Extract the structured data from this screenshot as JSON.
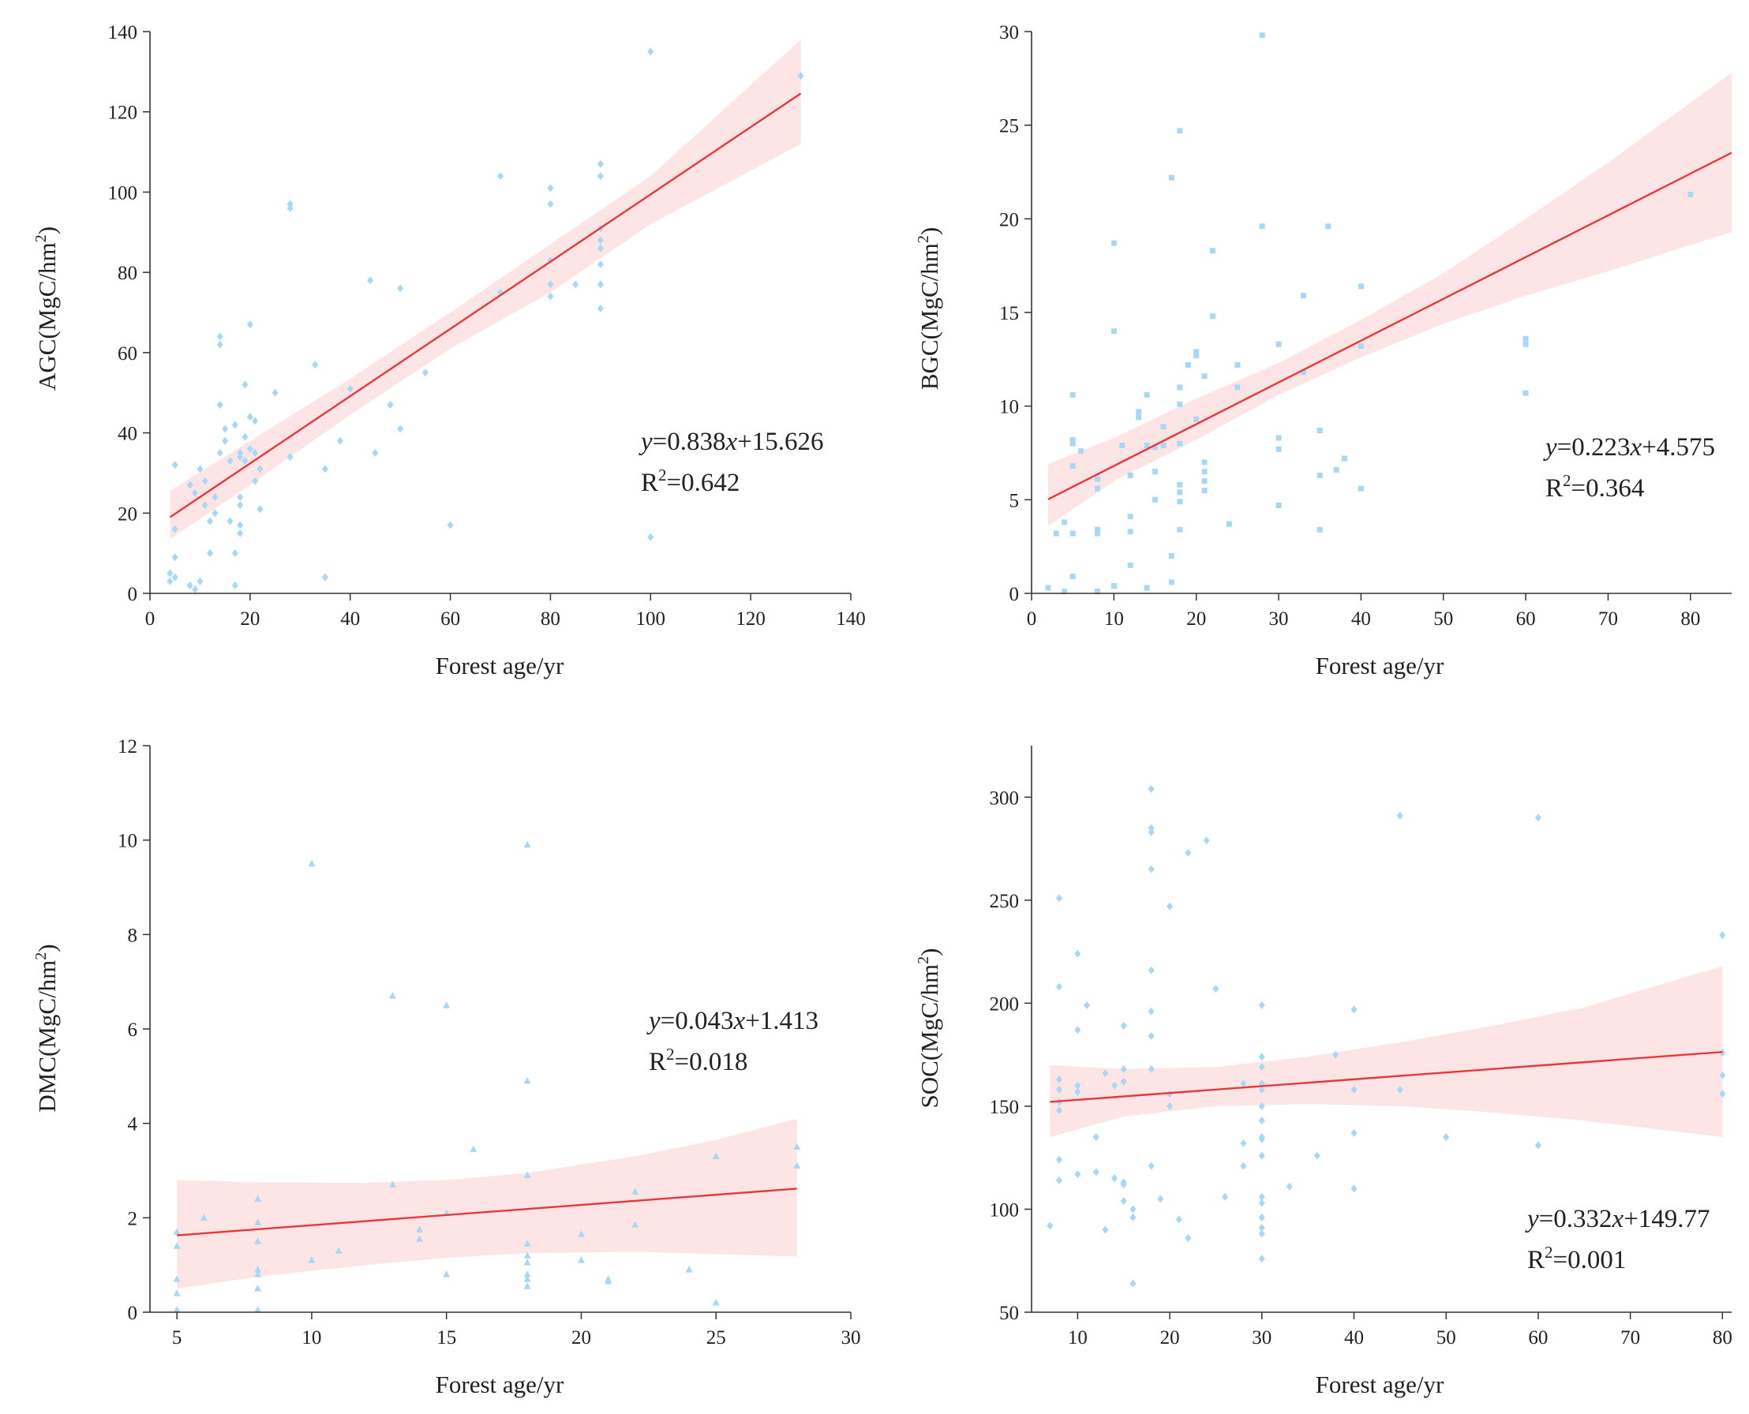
{
  "colors": {
    "point": "#a8d8f5",
    "band": "#fde2e2",
    "line": "#e8383c",
    "axis": "#333333"
  },
  "chart_data": [
    {
      "type": "scatter",
      "marker": "diamond",
      "xlabel": "Forest age/yr",
      "ylabel_main": "AGC(MgC/hm",
      "ylabel_sup": "2",
      "ylabel_close": ")",
      "xlim": [
        0,
        140
      ],
      "ylim": [
        0,
        140
      ],
      "xticks": [
        0,
        20,
        40,
        60,
        80,
        100,
        120,
        140
      ],
      "yticks": [
        0,
        20,
        40,
        60,
        80,
        100,
        120,
        140
      ],
      "fit": {
        "slope": 0.838,
        "intercept": 15.626,
        "x_range": [
          4,
          130
        ]
      },
      "band": {
        "x": [
          4,
          20,
          40,
          60,
          80,
          100,
          130
        ],
        "lower": [
          13.5,
          27,
          44.5,
          61,
          75,
          92,
          112
        ],
        "upper": [
          25.5,
          38,
          53.5,
          70,
          87,
          104,
          138
        ]
      },
      "equation": {
        "y": "y",
        "eq1": "=0.838",
        "x": "x",
        "eq2": "+15.626"
      },
      "r2": {
        "R": "R",
        "sup": "2",
        "val": "=0.642"
      },
      "points": [
        [
          4,
          3
        ],
        [
          4,
          5
        ],
        [
          5,
          4
        ],
        [
          5,
          9
        ],
        [
          5,
          16
        ],
        [
          5,
          32
        ],
        [
          8,
          2
        ],
        [
          8,
          27
        ],
        [
          9,
          1
        ],
        [
          9,
          25
        ],
        [
          10,
          3
        ],
        [
          10,
          31
        ],
        [
          11,
          22
        ],
        [
          11,
          28
        ],
        [
          12,
          10
        ],
        [
          12,
          18
        ],
        [
          13,
          20
        ],
        [
          13,
          24
        ],
        [
          14,
          35
        ],
        [
          14,
          47
        ],
        [
          14,
          62
        ],
        [
          14,
          64
        ],
        [
          15,
          38
        ],
        [
          15,
          41
        ],
        [
          16,
          18
        ],
        [
          16,
          33
        ],
        [
          17,
          10
        ],
        [
          17,
          42
        ],
        [
          17,
          2
        ],
        [
          18,
          15
        ],
        [
          18,
          17
        ],
        [
          18,
          22
        ],
        [
          18,
          24
        ],
        [
          18,
          34
        ],
        [
          18,
          35
        ],
        [
          19,
          33
        ],
        [
          19,
          39
        ],
        [
          19,
          52
        ],
        [
          20,
          36
        ],
        [
          20,
          44
        ],
        [
          20,
          67
        ],
        [
          21,
          28
        ],
        [
          21,
          35
        ],
        [
          21,
          43
        ],
        [
          22,
          21
        ],
        [
          22,
          31
        ],
        [
          25,
          50
        ],
        [
          28,
          34
        ],
        [
          28,
          96
        ],
        [
          28,
          97
        ],
        [
          33,
          57
        ],
        [
          35,
          4
        ],
        [
          35,
          31
        ],
        [
          38,
          38
        ],
        [
          40,
          51
        ],
        [
          44,
          78
        ],
        [
          45,
          35
        ],
        [
          48,
          47
        ],
        [
          50,
          41
        ],
        [
          50,
          76
        ],
        [
          55,
          55
        ],
        [
          60,
          17
        ],
        [
          70,
          75
        ],
        [
          70,
          104
        ],
        [
          80,
          74
        ],
        [
          80,
          77
        ],
        [
          80,
          83
        ],
        [
          80,
          97
        ],
        [
          80,
          101
        ],
        [
          85,
          77
        ],
        [
          90,
          71
        ],
        [
          90,
          77
        ],
        [
          90,
          82
        ],
        [
          90,
          86
        ],
        [
          90,
          88
        ],
        [
          90,
          91
        ],
        [
          90,
          104
        ],
        [
          90,
          107
        ],
        [
          100,
          14
        ],
        [
          100,
          135
        ],
        [
          130,
          129
        ]
      ]
    },
    {
      "type": "scatter",
      "marker": "square",
      "xlabel": "Forest age/yr",
      "ylabel_main": "BGC(MgC/hm",
      "ylabel_sup": "2",
      "ylabel_close": ")",
      "xlim": [
        0,
        85
      ],
      "ylim": [
        0,
        30
      ],
      "xticks": [
        0,
        10,
        20,
        30,
        40,
        50,
        60,
        70,
        80
      ],
      "yticks": [
        0,
        5,
        10,
        15,
        20,
        25,
        30
      ],
      "fit": {
        "slope": 0.223,
        "intercept": 4.575,
        "x_range": [
          2,
          85
        ]
      },
      "band": {
        "x": [
          2,
          10,
          20,
          30,
          40,
          50,
          60,
          70,
          85
        ],
        "lower": [
          3.6,
          6.0,
          8.2,
          10.6,
          12.6,
          14.4,
          15.9,
          17.2,
          19.3
        ],
        "upper": [
          6.9,
          8.3,
          10.4,
          12.3,
          14.6,
          17.1,
          20.0,
          23.0,
          27.8
        ]
      },
      "equation": {
        "y": "y",
        "eq1": "=0.223",
        "x": "x",
        "eq2": "+4.575"
      },
      "r2": {
        "R": "R",
        "sup": "2",
        "val": "=0.364"
      },
      "points": [
        [
          2,
          0.3
        ],
        [
          3,
          3.2
        ],
        [
          4,
          3.8
        ],
        [
          4,
          0.1
        ],
        [
          5,
          3.2
        ],
        [
          5,
          6.8
        ],
        [
          5,
          8.0
        ],
        [
          5,
          8.2
        ],
        [
          5,
          10.6
        ],
        [
          5,
          0.9
        ],
        [
          6,
          7.6
        ],
        [
          8,
          3.2
        ],
        [
          8,
          3.4
        ],
        [
          8,
          5.6
        ],
        [
          8,
          6.1
        ],
        [
          8,
          0.1
        ],
        [
          10,
          0.4
        ],
        [
          10,
          14.0
        ],
        [
          10,
          18.7
        ],
        [
          11,
          7.9
        ],
        [
          12,
          1.5
        ],
        [
          12,
          3.3
        ],
        [
          12,
          4.1
        ],
        [
          12,
          6.3
        ],
        [
          13,
          9.4
        ],
        [
          13,
          9.7
        ],
        [
          14,
          0.3
        ],
        [
          14,
          7.9
        ],
        [
          14,
          10.6
        ],
        [
          15,
          5.0
        ],
        [
          15,
          6.5
        ],
        [
          15,
          7.8
        ],
        [
          16,
          7.9
        ],
        [
          16,
          8.9
        ],
        [
          17,
          0.6
        ],
        [
          17,
          2.0
        ],
        [
          17,
          22.2
        ],
        [
          18,
          3.4
        ],
        [
          18,
          4.9
        ],
        [
          18,
          5.4
        ],
        [
          18,
          5.8
        ],
        [
          18,
          8.0
        ],
        [
          18,
          10.1
        ],
        [
          18,
          11.0
        ],
        [
          18,
          24.7
        ],
        [
          19,
          12.2
        ],
        [
          20,
          9.3
        ],
        [
          20,
          12.7
        ],
        [
          20,
          12.9
        ],
        [
          21,
          5.5
        ],
        [
          21,
          6.0
        ],
        [
          21,
          6.5
        ],
        [
          21,
          7.0
        ],
        [
          21,
          11.6
        ],
        [
          22,
          14.8
        ],
        [
          22,
          18.3
        ],
        [
          24,
          3.7
        ],
        [
          25,
          11.0
        ],
        [
          25,
          12.2
        ],
        [
          28,
          19.6
        ],
        [
          28,
          29.8
        ],
        [
          30,
          4.7
        ],
        [
          30,
          7.7
        ],
        [
          30,
          8.3
        ],
        [
          30,
          13.3
        ],
        [
          33,
          11.8
        ],
        [
          33,
          15.9
        ],
        [
          35,
          3.4
        ],
        [
          35,
          6.3
        ],
        [
          35,
          8.7
        ],
        [
          36,
          19.6
        ],
        [
          37,
          6.6
        ],
        [
          38,
          7.2
        ],
        [
          40,
          5.6
        ],
        [
          40,
          13.2
        ],
        [
          40,
          16.4
        ],
        [
          60,
          10.7
        ],
        [
          60,
          13.3
        ],
        [
          60,
          13.6
        ],
        [
          80,
          21.3
        ]
      ]
    },
    {
      "type": "scatter",
      "marker": "triangle",
      "xlabel": "Forest age/yr",
      "ylabel_main": "DMC(MgC/hm",
      "ylabel_sup": "2",
      "ylabel_close": ")",
      "xlim": [
        4,
        30
      ],
      "ylim": [
        0,
        12
      ],
      "xticks": [
        5,
        10,
        15,
        20,
        25,
        30
      ],
      "yticks": [
        0,
        2,
        4,
        6,
        8,
        10,
        12
      ],
      "fit": {
        "slope": 0.043,
        "intercept": 1.413,
        "x_range": [
          5,
          28
        ]
      },
      "band": {
        "x": [
          5,
          8,
          12,
          15,
          18,
          22,
          25,
          28
        ],
        "lower": [
          0.5,
          0.75,
          1.0,
          1.15,
          1.25,
          1.28,
          1.23,
          1.18
        ],
        "upper": [
          2.8,
          2.75,
          2.74,
          2.8,
          2.95,
          3.3,
          3.65,
          4.1
        ]
      },
      "equation": {
        "y": "y",
        "eq1": "=0.043",
        "x": "x",
        "eq2": "+1.413"
      },
      "r2": {
        "R": "R",
        "sup": "2",
        "val": "=0.018"
      },
      "points": [
        [
          5,
          0.05
        ],
        [
          5,
          0.4
        ],
        [
          5,
          0.7
        ],
        [
          5,
          1.4
        ],
        [
          5,
          1.7
        ],
        [
          6,
          2.0
        ],
        [
          8,
          0.05
        ],
        [
          8,
          0.5
        ],
        [
          8,
          0.8
        ],
        [
          8,
          0.9
        ],
        [
          8,
          1.5
        ],
        [
          8,
          1.9
        ],
        [
          8,
          2.4
        ],
        [
          10,
          1.1
        ],
        [
          10,
          9.5
        ],
        [
          11,
          1.3
        ],
        [
          13,
          2.7
        ],
        [
          13,
          6.7
        ],
        [
          14,
          1.55
        ],
        [
          14,
          1.75
        ],
        [
          15,
          0.8
        ],
        [
          15,
          2.1
        ],
        [
          15,
          6.5
        ],
        [
          16,
          3.45
        ],
        [
          18,
          0.55
        ],
        [
          18,
          0.7
        ],
        [
          18,
          0.8
        ],
        [
          18,
          1.05
        ],
        [
          18,
          1.2
        ],
        [
          18,
          1.45
        ],
        [
          18,
          2.9
        ],
        [
          18,
          4.9
        ],
        [
          18,
          9.9
        ],
        [
          20,
          1.1
        ],
        [
          20,
          1.65
        ],
        [
          21,
          0.65
        ],
        [
          21,
          0.7
        ],
        [
          22,
          1.85
        ],
        [
          22,
          2.55
        ],
        [
          24,
          0.9
        ],
        [
          25,
          0.2
        ],
        [
          25,
          3.3
        ],
        [
          28,
          3.1
        ],
        [
          28,
          3.5
        ]
      ]
    },
    {
      "type": "scatter",
      "marker": "diamond",
      "xlabel": "Forest age/yr",
      "ylabel_main": "SOC(MgC/hm",
      "ylabel_sup": "2",
      "ylabel_close": ")",
      "xlim": [
        5,
        81
      ],
      "ylim": [
        50,
        325
      ],
      "xticks": [
        10,
        20,
        30,
        40,
        50,
        60,
        70,
        80
      ],
      "yticks": [
        50,
        100,
        150,
        200,
        250,
        300
      ],
      "fit": {
        "slope": 0.332,
        "intercept": 149.77,
        "x_range": [
          7,
          80
        ]
      },
      "band": {
        "x": [
          7,
          15,
          25,
          35,
          45,
          55,
          65,
          80
        ],
        "lower": [
          135,
          145,
          150,
          151,
          150,
          147,
          143,
          135
        ],
        "upper": [
          170,
          168,
          169,
          174,
          181,
          189,
          198,
          218
        ]
      },
      "equation": {
        "y": "y",
        "eq1": "=0.332",
        "x": "x",
        "eq2": "+149.77"
      },
      "r2": {
        "R": "R",
        "sup": "2",
        "val": "=0.001"
      },
      "points": [
        [
          7,
          92
        ],
        [
          8,
          114
        ],
        [
          8,
          124
        ],
        [
          8,
          148
        ],
        [
          8,
          152
        ],
        [
          8,
          158
        ],
        [
          8,
          163
        ],
        [
          8,
          208
        ],
        [
          8,
          251
        ],
        [
          10,
          117
        ],
        [
          10,
          157
        ],
        [
          10,
          160
        ],
        [
          10,
          187
        ],
        [
          10,
          224
        ],
        [
          11,
          199
        ],
        [
          12,
          118
        ],
        [
          12,
          135
        ],
        [
          13,
          90
        ],
        [
          13,
          166
        ],
        [
          14,
          160
        ],
        [
          14,
          115
        ],
        [
          15,
          104
        ],
        [
          15,
          112
        ],
        [
          15,
          113
        ],
        [
          15,
          162
        ],
        [
          15,
          168
        ],
        [
          15,
          189
        ],
        [
          16,
          64
        ],
        [
          16,
          96
        ],
        [
          16,
          100
        ],
        [
          18,
          121
        ],
        [
          18,
          168
        ],
        [
          18,
          184
        ],
        [
          18,
          196
        ],
        [
          18,
          216
        ],
        [
          18,
          265
        ],
        [
          18,
          283
        ],
        [
          18,
          285
        ],
        [
          18,
          304
        ],
        [
          19,
          105
        ],
        [
          20,
          150
        ],
        [
          20,
          156
        ],
        [
          20,
          247
        ],
        [
          21,
          95
        ],
        [
          22,
          86
        ],
        [
          22,
          273
        ],
        [
          24,
          279
        ],
        [
          25,
          207
        ],
        [
          26,
          106
        ],
        [
          28,
          121
        ],
        [
          28,
          132
        ],
        [
          28,
          161
        ],
        [
          30,
          76
        ],
        [
          30,
          88
        ],
        [
          30,
          91
        ],
        [
          30,
          96
        ],
        [
          30,
          103
        ],
        [
          30,
          106
        ],
        [
          30,
          126
        ],
        [
          30,
          134
        ],
        [
          30,
          135
        ],
        [
          30,
          143
        ],
        [
          30,
          150
        ],
        [
          30,
          158
        ],
        [
          30,
          161
        ],
        [
          30,
          169
        ],
        [
          30,
          174
        ],
        [
          30,
          199
        ],
        [
          33,
          111
        ],
        [
          36,
          126
        ],
        [
          38,
          175
        ],
        [
          40,
          110
        ],
        [
          40,
          137
        ],
        [
          40,
          158
        ],
        [
          40,
          197
        ],
        [
          45,
          158
        ],
        [
          45,
          291
        ],
        [
          50,
          135
        ],
        [
          60,
          131
        ],
        [
          60,
          290
        ],
        [
          80,
          156
        ],
        [
          80,
          165
        ],
        [
          80,
          176
        ],
        [
          80,
          233
        ]
      ]
    }
  ]
}
